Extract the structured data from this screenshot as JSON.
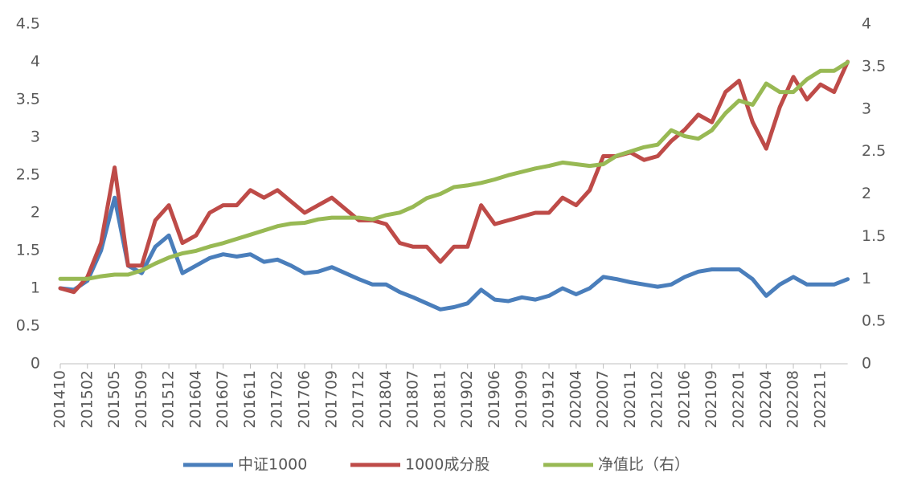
{
  "chart_data": {
    "type": "line",
    "categories": [
      "201410",
      null,
      "201502",
      null,
      "201505",
      null,
      "201509",
      null,
      "201512",
      null,
      "201604",
      null,
      "201607",
      null,
      "201611",
      null,
      "201702",
      null,
      "201706",
      null,
      "201709",
      null,
      "201712",
      null,
      "201804",
      null,
      "201807",
      null,
      "201811",
      null,
      "201902",
      null,
      "201906",
      null,
      "201909",
      null,
      "201912",
      null,
      "202004",
      null,
      "202007",
      null,
      "202011",
      null,
      "202102",
      null,
      "202106",
      null,
      "202109",
      null,
      "202201",
      null,
      "202204",
      null,
      "202208",
      null,
      "202211",
      null,
      null
    ],
    "series": [
      {
        "name": "中证1000",
        "color": "#4a7ebb",
        "values": [
          1.0,
          0.98,
          1.1,
          1.5,
          2.2,
          1.3,
          1.2,
          1.55,
          1.7,
          1.2,
          1.3,
          1.4,
          1.45,
          1.42,
          1.45,
          1.35,
          1.38,
          1.3,
          1.2,
          1.22,
          1.28,
          1.2,
          1.12,
          1.05,
          1.05,
          0.95,
          0.88,
          0.8,
          0.72,
          0.75,
          0.8,
          0.98,
          0.85,
          0.83,
          0.88,
          0.85,
          0.9,
          1.0,
          0.92,
          1.0,
          1.15,
          1.12,
          1.08,
          1.05,
          1.02,
          1.05,
          1.15,
          1.22,
          1.25,
          1.25,
          1.25,
          1.12,
          0.9,
          1.05,
          1.15,
          1.05,
          1.05,
          1.05,
          1.12
        ]
      },
      {
        "name": "1000成分股",
        "color": "#be4b48",
        "values": [
          1.0,
          0.95,
          1.15,
          1.6,
          2.6,
          1.3,
          1.3,
          1.9,
          2.1,
          1.6,
          1.7,
          2.0,
          2.1,
          2.1,
          2.3,
          2.2,
          2.3,
          2.15,
          2.0,
          2.1,
          2.2,
          2.05,
          1.9,
          1.9,
          1.85,
          1.6,
          1.55,
          1.55,
          1.35,
          1.55,
          1.55,
          2.1,
          1.85,
          1.9,
          1.95,
          2.0,
          2.0,
          2.2,
          2.1,
          2.3,
          2.75,
          2.75,
          2.8,
          2.7,
          2.75,
          2.95,
          3.1,
          3.3,
          3.2,
          3.6,
          3.75,
          3.2,
          2.85,
          3.4,
          3.8,
          3.5,
          3.7,
          3.6,
          4.0
        ]
      },
      {
        "name": "净值比（右）",
        "color": "#98b954",
        "axis": "y2",
        "values": [
          1.0,
          1.0,
          1.0,
          1.03,
          1.05,
          1.05,
          1.1,
          1.18,
          1.25,
          1.3,
          1.33,
          1.38,
          1.42,
          1.47,
          1.52,
          1.57,
          1.62,
          1.65,
          1.66,
          1.7,
          1.72,
          1.72,
          1.72,
          1.7,
          1.75,
          1.78,
          1.85,
          1.95,
          2.0,
          2.08,
          2.1,
          2.13,
          2.17,
          2.22,
          2.26,
          2.3,
          2.33,
          2.37,
          2.35,
          2.33,
          2.35,
          2.45,
          2.5,
          2.55,
          2.58,
          2.75,
          2.68,
          2.65,
          2.75,
          2.95,
          3.1,
          3.05,
          3.3,
          3.2,
          3.2,
          3.35,
          3.45,
          3.45,
          3.55
        ]
      }
    ],
    "ylim": [
      0,
      4.5
    ],
    "yticks": [
      0,
      0.5,
      1,
      1.5,
      2,
      2.5,
      3,
      3.5,
      4,
      4.5
    ],
    "y2lim": [
      0,
      4
    ],
    "y2ticks": [
      0,
      0.5,
      1,
      1.5,
      2,
      2.5,
      3,
      3.5,
      4
    ],
    "grid": false,
    "legend": "bottom"
  }
}
